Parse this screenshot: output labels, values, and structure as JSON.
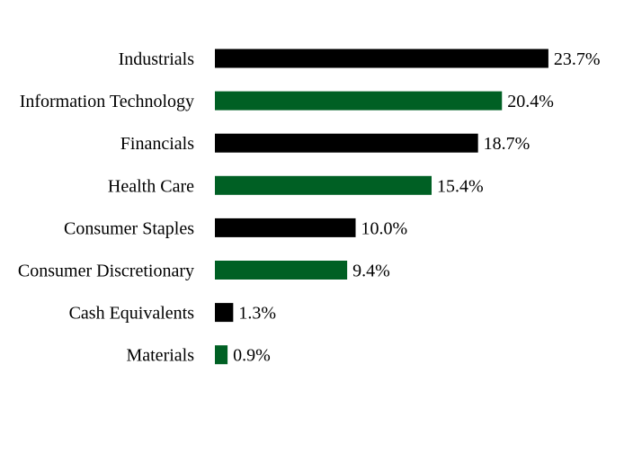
{
  "chart_data": {
    "type": "bar",
    "orientation": "horizontal",
    "categories": [
      "Industrials",
      "Information Technology",
      "Financials",
      "Health Care",
      "Consumer Staples",
      "Consumer Discretionary",
      "Cash Equivalents",
      "Materials"
    ],
    "values": [
      23.7,
      20.4,
      18.7,
      15.4,
      10.0,
      9.4,
      1.3,
      0.9
    ],
    "value_labels": [
      "23.7%",
      "20.4%",
      "18.7%",
      "15.4%",
      "10.0%",
      "9.4%",
      "1.3%",
      "0.9%"
    ],
    "bar_colors": [
      "#000000",
      "#006024",
      "#000000",
      "#006024",
      "#000000",
      "#006024",
      "#000000",
      "#006024"
    ],
    "xlim": [
      0,
      25
    ],
    "grid": false,
    "legend": "none"
  }
}
